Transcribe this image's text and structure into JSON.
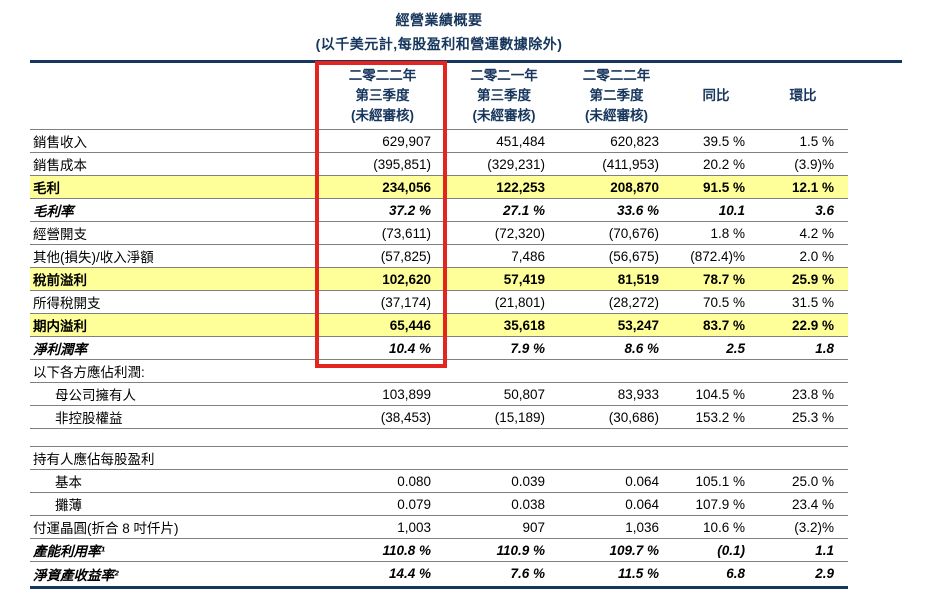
{
  "title": "經營業績概要",
  "subtitle": "(以千美元計,每股盈利和營運數據除外)",
  "columns": [
    {
      "line1": "二零二二年",
      "line2": "第三季度",
      "line3": "(未經審核)",
      "highlighted": true
    },
    {
      "line1": "二零二一年",
      "line2": "第三季度",
      "line3": "(未經審核)",
      "highlighted": false
    },
    {
      "line1": "二零二二年",
      "line2": "第二季度",
      "line3": "(未經審核)",
      "highlighted": false
    },
    {
      "line1": "同比",
      "line2": "",
      "line3": "",
      "highlighted": false
    },
    {
      "line1": "環比",
      "line2": "",
      "line3": "",
      "highlighted": false
    }
  ],
  "rows": [
    {
      "label": "銷售收入",
      "values": [
        "629,907",
        "451,484",
        "620,823",
        "39.5 %",
        "1.5 %"
      ],
      "style": "normal",
      "indent": false
    },
    {
      "label": "銷售成本",
      "values": [
        "(395,851)",
        "(329,231)",
        "(411,953)",
        "20.2 %",
        "(3.9)%"
      ],
      "style": "normal",
      "indent": false
    },
    {
      "label": "毛利",
      "values": [
        "234,056",
        "122,253",
        "208,870",
        "91.5 %",
        "12.1 %"
      ],
      "style": "highlight",
      "indent": false
    },
    {
      "label": "毛利率",
      "values": [
        "37.2 %",
        "27.1 %",
        "33.6 %",
        "10.1",
        "3.6"
      ],
      "style": "italic",
      "indent": false
    },
    {
      "label": "經營開支",
      "values": [
        "(73,611)",
        "(72,320)",
        "(70,676)",
        "1.8 %",
        "4.2 %"
      ],
      "style": "normal",
      "indent": false
    },
    {
      "label": "其他(損失)/收入淨額",
      "values": [
        "(57,825)",
        "7,486",
        "(56,675)",
        "(872.4)%",
        "2.0 %"
      ],
      "style": "normal",
      "indent": false
    },
    {
      "label": "稅前溢利",
      "values": [
        "102,620",
        "57,419",
        "81,519",
        "78.7 %",
        "25.9 %"
      ],
      "style": "highlight",
      "indent": false
    },
    {
      "label": "所得稅開支",
      "values": [
        "(37,174)",
        "(21,801)",
        "(28,272)",
        "70.5 %",
        "31.5 %"
      ],
      "style": "normal",
      "indent": false
    },
    {
      "label": "期内溢利",
      "values": [
        "65,446",
        "35,618",
        "53,247",
        "83.7 %",
        "22.9 %"
      ],
      "style": "highlight",
      "indent": false
    },
    {
      "label": "淨利潤率",
      "values": [
        "10.4 %",
        "7.9 %",
        "8.6 %",
        "2.5",
        "1.8"
      ],
      "style": "italic",
      "indent": false
    },
    {
      "label": "以下各方應佔利潤:",
      "values": [
        "",
        "",
        "",
        "",
        ""
      ],
      "style": "section",
      "indent": false
    },
    {
      "label": "母公司擁有人",
      "values": [
        "103,899",
        "50,807",
        "83,933",
        "104.5 %",
        "23.8 %"
      ],
      "style": "normal",
      "indent": true
    },
    {
      "label": "非控股權益",
      "values": [
        "(38,453)",
        "(15,189)",
        "(30,686)",
        "153.2 %",
        "25.3 %"
      ],
      "style": "normal",
      "indent": true
    },
    {
      "label": "",
      "values": [
        "",
        "",
        "",
        "",
        ""
      ],
      "style": "spacer",
      "indent": false
    },
    {
      "label": "持有人應佔每股盈利",
      "values": [
        "",
        "",
        "",
        "",
        ""
      ],
      "style": "section",
      "indent": false
    },
    {
      "label": "基本",
      "values": [
        "0.080",
        "0.039",
        "0.064",
        "105.1 %",
        "25.0 %"
      ],
      "style": "normal",
      "indent": true
    },
    {
      "label": "攤薄",
      "values": [
        "0.079",
        "0.038",
        "0.064",
        "107.9 %",
        "23.4 %"
      ],
      "style": "normal",
      "indent": true
    },
    {
      "label": "付運晶圓(折合 8 吋仟片)",
      "values": [
        "1,003",
        "907",
        "1,036",
        "10.6 %",
        "(3.2)%"
      ],
      "style": "normal",
      "indent": false
    },
    {
      "label": "產能利用率¹",
      "values": [
        "110.8 %",
        "110.9 %",
        "109.7 %",
        "(0.1)",
        "1.1"
      ],
      "style": "italic",
      "indent": false
    },
    {
      "label": "淨資產收益率²",
      "values": [
        "14.4 %",
        "7.6 %",
        "11.5 %",
        "6.8",
        "2.9"
      ],
      "style": "italic",
      "indent": false
    }
  ],
  "colors": {
    "navy": "#17365D",
    "row_highlight": "#FFFF99",
    "red_box": "#E4251F",
    "grid_line": "#808080"
  }
}
